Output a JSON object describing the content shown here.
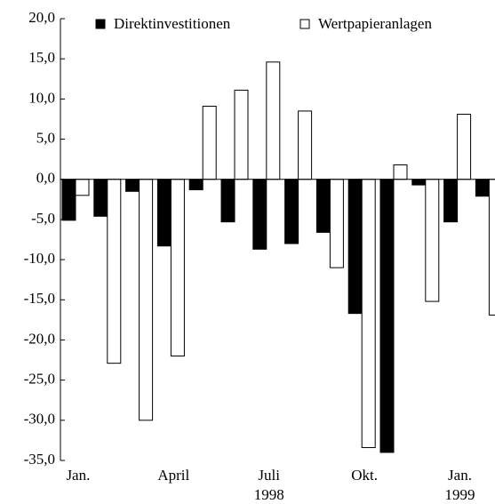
{
  "chart_data": {
    "type": "bar",
    "categories": [
      "Jan.",
      null,
      null,
      "April",
      null,
      null,
      "Juli 1998",
      null,
      null,
      "Okt.",
      null,
      null,
      "Jan. 1999",
      null
    ],
    "series": [
      {
        "name": "Direktinvestitionen",
        "color": "#000000",
        "values": [
          -5.1,
          -4.6,
          -1.5,
          -8.3,
          -1.3,
          -5.3,
          -8.7,
          -8.0,
          -6.6,
          -16.7,
          -34.0,
          -0.7,
          -5.3,
          -2.1
        ]
      },
      {
        "name": "Wertpapieranlagen",
        "color": "#ffffff",
        "values": [
          -2.0,
          -22.9,
          -30.0,
          -22.0,
          9.1,
          11.1,
          14.6,
          8.5,
          -11.0,
          -33.4,
          1.8,
          -15.2,
          8.1,
          -16.9
        ]
      }
    ],
    "ylim": [
      -35,
      20
    ],
    "yticks": [
      {
        "value": 20,
        "label": "20,0"
      },
      {
        "value": 15,
        "label": "15,0"
      },
      {
        "value": 10,
        "label": "10,0"
      },
      {
        "value": 5,
        "label": "5,0"
      },
      {
        "value": 0,
        "label": "0,0"
      },
      {
        "value": -5,
        "label": "-5,0"
      },
      {
        "value": -10,
        "label": "-10,0"
      },
      {
        "value": -15,
        "label": "-15,0"
      },
      {
        "value": -20,
        "label": "-20,0"
      },
      {
        "value": -25,
        "label": "-25,0"
      },
      {
        "value": -30,
        "label": "-30,0"
      },
      {
        "value": -35,
        "label": "-35,0"
      }
    ],
    "legend": "top"
  }
}
